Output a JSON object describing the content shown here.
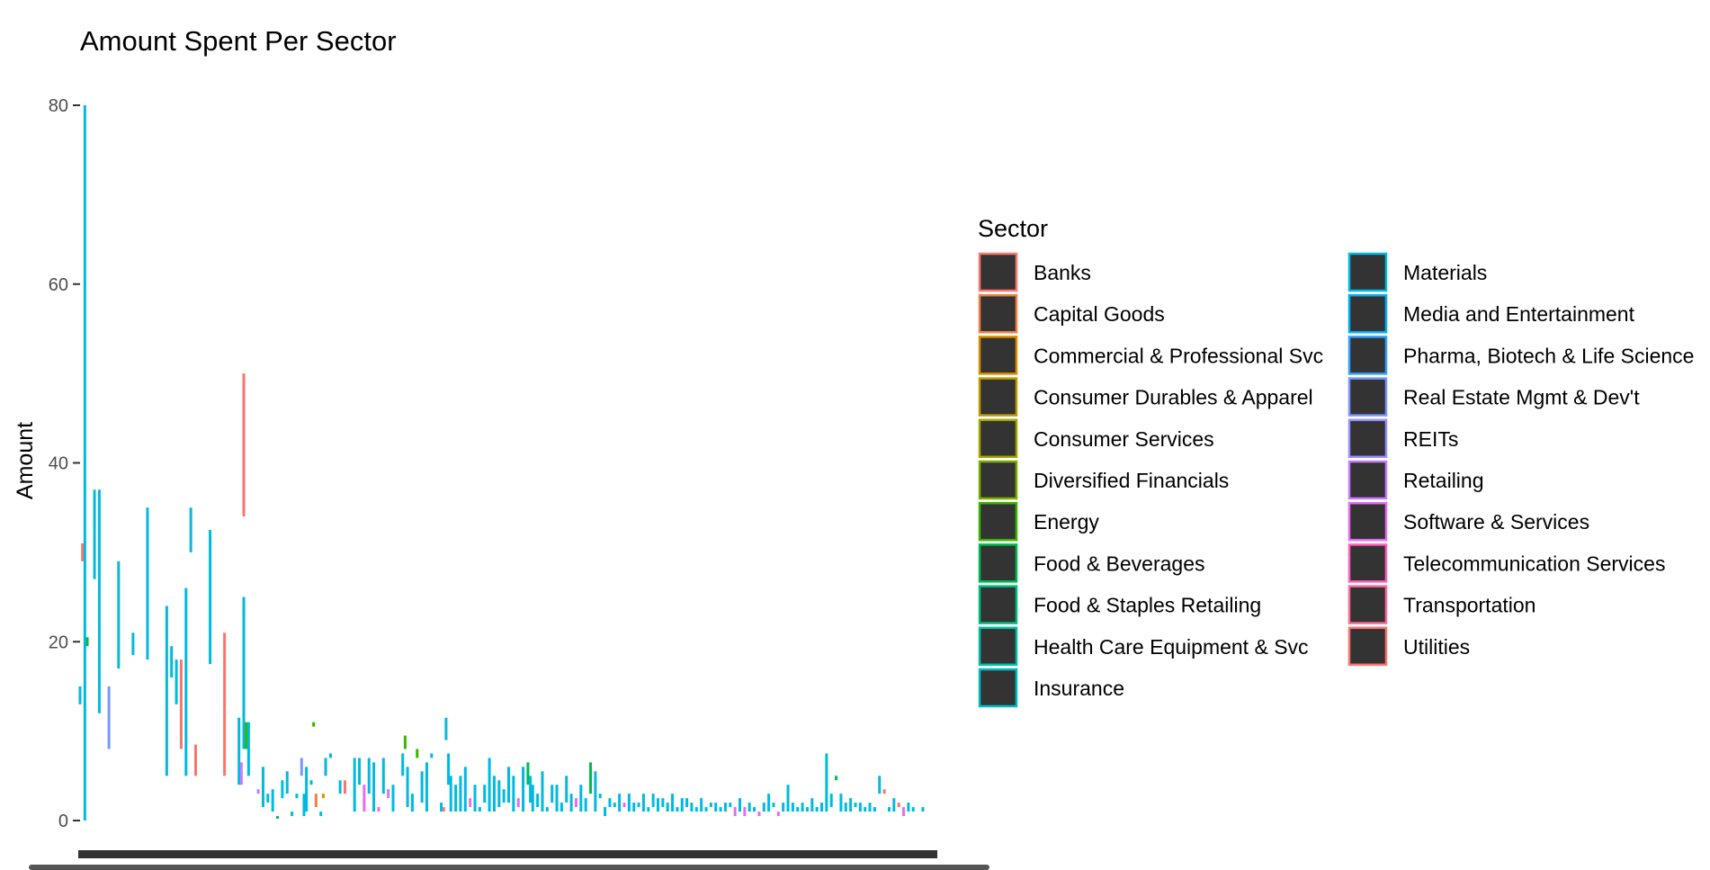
{
  "chart_data": {
    "type": "bar",
    "title": "Amount Spent Per Sector",
    "xlabel": "",
    "ylabel": "Amount",
    "ylim": [
      0,
      80
    ],
    "yticks": [
      0,
      20,
      40,
      60,
      80
    ],
    "grid": false,
    "legend": {
      "title": "Sector",
      "placement": "right",
      "columns": 2,
      "entries": [
        {
          "name": "Banks",
          "color": "#F8766D"
        },
        {
          "name": "Capital Goods",
          "color": "#EE8044"
        },
        {
          "name": "Commercial & Professional Svc",
          "color": "#DB8E00"
        },
        {
          "name": "Consumer Durables & Apparel",
          "color": "#C09B00"
        },
        {
          "name": "Consumer Services",
          "color": "#A3A500"
        },
        {
          "name": "Diversified Financials",
          "color": "#7CAE00"
        },
        {
          "name": "Energy",
          "color": "#39B600"
        },
        {
          "name": "Food & Beverages",
          "color": "#00BB4E"
        },
        {
          "name": "Food & Staples Retailing",
          "color": "#00BF7D"
        },
        {
          "name": "Health Care Equipment & Svc",
          "color": "#00C1A3"
        },
        {
          "name": "Insurance",
          "color": "#00BFC4"
        },
        {
          "name": "Materials",
          "color": "#00BAE0"
        },
        {
          "name": "Media and Entertainment",
          "color": "#00B0F6"
        },
        {
          "name": "Pharma, Biotech & Life Science",
          "color": "#35A2FF"
        },
        {
          "name": "Real Estate Mgmt & Dev't",
          "color": "#7997FF"
        },
        {
          "name": "REITs",
          "color": "#9590FF"
        },
        {
          "name": "Retailing",
          "color": "#C77CFF"
        },
        {
          "name": "Software & Services",
          "color": "#E76BF3"
        },
        {
          "name": "Telecommunication Services",
          "color": "#FF62BC"
        },
        {
          "name": "Transportation",
          "color": "#FF6A98"
        },
        {
          "name": "Utilities",
          "color": "#F8766D"
        }
      ]
    },
    "bars": [
      {
        "x": 0,
        "low": 13,
        "high": 15,
        "sector": 11
      },
      {
        "x": 0.5,
        "low": 29,
        "high": 31,
        "sector": 0
      },
      {
        "x": 1,
        "low": 0,
        "high": 80,
        "sector": 11
      },
      {
        "x": 1.5,
        "low": 19.5,
        "high": 20.5,
        "sector": 7
      },
      {
        "x": 3,
        "low": 27,
        "high": 37,
        "sector": 11
      },
      {
        "x": 4,
        "low": 12,
        "high": 37,
        "sector": 11
      },
      {
        "x": 6,
        "low": 8,
        "high": 15,
        "sector": 14
      },
      {
        "x": 8,
        "low": 17,
        "high": 29,
        "sector": 11
      },
      {
        "x": 11,
        "low": 18.5,
        "high": 21,
        "sector": 11
      },
      {
        "x": 14,
        "low": 18,
        "high": 35,
        "sector": 11
      },
      {
        "x": 18,
        "low": 5,
        "high": 24,
        "sector": 11
      },
      {
        "x": 19,
        "low": 16,
        "high": 19.5,
        "sector": 11
      },
      {
        "x": 20,
        "low": 13,
        "high": 18,
        "sector": 11
      },
      {
        "x": 21,
        "low": 8,
        "high": 18,
        "sector": 0
      },
      {
        "x": 22,
        "low": 5,
        "high": 26,
        "sector": 11
      },
      {
        "x": 23,
        "low": 30,
        "high": 35,
        "sector": 11
      },
      {
        "x": 24,
        "low": 5,
        "high": 8.5,
        "sector": 0
      },
      {
        "x": 27,
        "low": 17.5,
        "high": 32.5,
        "sector": 11
      },
      {
        "x": 30,
        "low": 5,
        "high": 21,
        "sector": 0
      },
      {
        "x": 33,
        "low": 4,
        "high": 11.5,
        "sector": 11
      },
      {
        "x": 33.5,
        "low": 4,
        "high": 6.5,
        "sector": 16
      },
      {
        "x": 34,
        "low": 34,
        "high": 50,
        "sector": 0
      },
      {
        "x": 34,
        "low": 8,
        "high": 25,
        "sector": 11
      },
      {
        "x": 34.5,
        "low": 8,
        "high": 11,
        "sector": 6
      },
      {
        "x": 35,
        "low": 5,
        "high": 11,
        "sector": 11
      },
      {
        "x": 37,
        "low": 3,
        "high": 3.5,
        "sector": 16
      },
      {
        "x": 38,
        "low": 1.5,
        "high": 6,
        "sector": 11
      },
      {
        "x": 39,
        "low": 2,
        "high": 3,
        "sector": 11
      },
      {
        "x": 40,
        "low": 1,
        "high": 3.5,
        "sector": 11
      },
      {
        "x": 41,
        "low": 0.2,
        "high": 0.5,
        "sector": 7
      },
      {
        "x": 42,
        "low": 2.5,
        "high": 4.5,
        "sector": 11
      },
      {
        "x": 43,
        "low": 3,
        "high": 5.5,
        "sector": 11
      },
      {
        "x": 44,
        "low": 0.5,
        "high": 1,
        "sector": 11
      },
      {
        "x": 45,
        "low": 2.5,
        "high": 3,
        "sector": 11
      },
      {
        "x": 46,
        "low": 5,
        "high": 7,
        "sector": 14
      },
      {
        "x": 46.5,
        "low": 0.5,
        "high": 3,
        "sector": 11
      },
      {
        "x": 47,
        "low": 1,
        "high": 6,
        "sector": 11
      },
      {
        "x": 48,
        "low": 4,
        "high": 4.5,
        "sector": 11
      },
      {
        "x": 48.5,
        "low": 10.5,
        "high": 11,
        "sector": 6
      },
      {
        "x": 49,
        "low": 1.5,
        "high": 3,
        "sector": 1
      },
      {
        "x": 50,
        "low": 0.5,
        "high": 1,
        "sector": 11
      },
      {
        "x": 50.5,
        "low": 2.5,
        "high": 3,
        "sector": 2
      },
      {
        "x": 51,
        "low": 5,
        "high": 7,
        "sector": 11
      },
      {
        "x": 52,
        "low": 7,
        "high": 7.5,
        "sector": 11
      },
      {
        "x": 54,
        "low": 3,
        "high": 4.5,
        "sector": 11
      },
      {
        "x": 55,
        "low": 3,
        "high": 4.5,
        "sector": 0
      },
      {
        "x": 57,
        "low": 1,
        "high": 7,
        "sector": 11
      },
      {
        "x": 58,
        "low": 4,
        "high": 7,
        "sector": 11
      },
      {
        "x": 59,
        "low": 1,
        "high": 4,
        "sector": 17
      },
      {
        "x": 60,
        "low": 3,
        "high": 7,
        "sector": 11
      },
      {
        "x": 61,
        "low": 1,
        "high": 6.5,
        "sector": 11
      },
      {
        "x": 62,
        "low": 1,
        "high": 1.5,
        "sector": 17
      },
      {
        "x": 63,
        "low": 3,
        "high": 7,
        "sector": 11
      },
      {
        "x": 64,
        "low": 2.5,
        "high": 3.5,
        "sector": 16
      },
      {
        "x": 65,
        "low": 1,
        "high": 4,
        "sector": 11
      },
      {
        "x": 67,
        "low": 5,
        "high": 7.5,
        "sector": 11
      },
      {
        "x": 67.5,
        "low": 8,
        "high": 9.5,
        "sector": 6
      },
      {
        "x": 68,
        "low": 1.5,
        "high": 6,
        "sector": 11
      },
      {
        "x": 69,
        "low": 1,
        "high": 3,
        "sector": 11
      },
      {
        "x": 70,
        "low": 7,
        "high": 8,
        "sector": 6
      },
      {
        "x": 71,
        "low": 2,
        "high": 5.5,
        "sector": 11
      },
      {
        "x": 72,
        "low": 1,
        "high": 6.5,
        "sector": 11
      },
      {
        "x": 73,
        "low": 7,
        "high": 7.5,
        "sector": 11
      },
      {
        "x": 75,
        "low": 1,
        "high": 2,
        "sector": 11
      },
      {
        "x": 75.5,
        "low": 1,
        "high": 1.5,
        "sector": 0
      },
      {
        "x": 76,
        "low": 9,
        "high": 11.5,
        "sector": 11
      },
      {
        "x": 76.5,
        "low": 4,
        "high": 7.5,
        "sector": 11
      },
      {
        "x": 77,
        "low": 1,
        "high": 5,
        "sector": 11
      },
      {
        "x": 78,
        "low": 1,
        "high": 4,
        "sector": 11
      },
      {
        "x": 79,
        "low": 1,
        "high": 5,
        "sector": 11
      },
      {
        "x": 80,
        "low": 1,
        "high": 6,
        "sector": 11
      },
      {
        "x": 81,
        "low": 1.5,
        "high": 2.5,
        "sector": 17
      },
      {
        "x": 82,
        "low": 1,
        "high": 4,
        "sector": 11
      },
      {
        "x": 83,
        "low": 1,
        "high": 1.5,
        "sector": 11
      },
      {
        "x": 84,
        "low": 2,
        "high": 4,
        "sector": 11
      },
      {
        "x": 85,
        "low": 1,
        "high": 7,
        "sector": 11
      },
      {
        "x": 86,
        "low": 1,
        "high": 5,
        "sector": 11
      },
      {
        "x": 87,
        "low": 1.5,
        "high": 4.5,
        "sector": 11
      },
      {
        "x": 88,
        "low": 2,
        "high": 3.5,
        "sector": 11
      },
      {
        "x": 89,
        "low": 2,
        "high": 6,
        "sector": 11
      },
      {
        "x": 90,
        "low": 1,
        "high": 5,
        "sector": 11
      },
      {
        "x": 91,
        "low": 1.5,
        "high": 2.5,
        "sector": 17
      },
      {
        "x": 92,
        "low": 1,
        "high": 6,
        "sector": 11
      },
      {
        "x": 93,
        "low": 4,
        "high": 6.5,
        "sector": 7
      },
      {
        "x": 93.5,
        "low": 2,
        "high": 5,
        "sector": 11
      },
      {
        "x": 94,
        "low": 1,
        "high": 4,
        "sector": 11
      },
      {
        "x": 95,
        "low": 1.5,
        "high": 3,
        "sector": 11
      },
      {
        "x": 96,
        "low": 1,
        "high": 5.5,
        "sector": 11
      },
      {
        "x": 97,
        "low": 1,
        "high": 1.5,
        "sector": 11
      },
      {
        "x": 98,
        "low": 2,
        "high": 4,
        "sector": 11
      },
      {
        "x": 99,
        "low": 1,
        "high": 4,
        "sector": 11
      },
      {
        "x": 100,
        "low": 1,
        "high": 2,
        "sector": 11
      },
      {
        "x": 101,
        "low": 2,
        "high": 5,
        "sector": 11
      },
      {
        "x": 102,
        "low": 1,
        "high": 3,
        "sector": 11
      },
      {
        "x": 103,
        "low": 1.5,
        "high": 2.5,
        "sector": 17
      },
      {
        "x": 104,
        "low": 1,
        "high": 4,
        "sector": 11
      },
      {
        "x": 105,
        "low": 1,
        "high": 2.5,
        "sector": 11
      },
      {
        "x": 106,
        "low": 3,
        "high": 6.5,
        "sector": 7
      },
      {
        "x": 107,
        "low": 1,
        "high": 5.5,
        "sector": 11
      },
      {
        "x": 108,
        "low": 2.5,
        "high": 3,
        "sector": 11
      },
      {
        "x": 109,
        "low": 0.5,
        "high": 1.5,
        "sector": 11
      },
      {
        "x": 110,
        "low": 1.5,
        "high": 2.5,
        "sector": 11
      },
      {
        "x": 111,
        "low": 1.5,
        "high": 2,
        "sector": 11
      },
      {
        "x": 112,
        "low": 1,
        "high": 3,
        "sector": 11
      },
      {
        "x": 113,
        "low": 1.5,
        "high": 2,
        "sector": 17
      },
      {
        "x": 114,
        "low": 1,
        "high": 3,
        "sector": 11
      },
      {
        "x": 115,
        "low": 1,
        "high": 2,
        "sector": 11
      },
      {
        "x": 116,
        "low": 1.5,
        "high": 2,
        "sector": 11
      },
      {
        "x": 117,
        "low": 1,
        "high": 3,
        "sector": 11
      },
      {
        "x": 118,
        "low": 1,
        "high": 1.5,
        "sector": 11
      },
      {
        "x": 119,
        "low": 1.5,
        "high": 3,
        "sector": 11
      },
      {
        "x": 120,
        "low": 1,
        "high": 2.5,
        "sector": 11
      },
      {
        "x": 121,
        "low": 1.5,
        "high": 2.5,
        "sector": 11
      },
      {
        "x": 122,
        "low": 1,
        "high": 2,
        "sector": 11
      },
      {
        "x": 123,
        "low": 1,
        "high": 3,
        "sector": 11
      },
      {
        "x": 124,
        "low": 1,
        "high": 1.5,
        "sector": 11
      },
      {
        "x": 125,
        "low": 1,
        "high": 2.5,
        "sector": 11
      },
      {
        "x": 126,
        "low": 1.5,
        "high": 2.5,
        "sector": 11
      },
      {
        "x": 127,
        "low": 1,
        "high": 2,
        "sector": 11
      },
      {
        "x": 128,
        "low": 1,
        "high": 1.5,
        "sector": 11
      },
      {
        "x": 129,
        "low": 1,
        "high": 2.5,
        "sector": 11
      },
      {
        "x": 130,
        "low": 1,
        "high": 1.5,
        "sector": 11
      },
      {
        "x": 131,
        "low": 1.5,
        "high": 2,
        "sector": 11
      },
      {
        "x": 132,
        "low": 1,
        "high": 2,
        "sector": 11
      },
      {
        "x": 133,
        "low": 1,
        "high": 1.5,
        "sector": 11
      },
      {
        "x": 134,
        "low": 1,
        "high": 2,
        "sector": 11
      },
      {
        "x": 135,
        "low": 1.5,
        "high": 2,
        "sector": 11
      },
      {
        "x": 136,
        "low": 0.5,
        "high": 1.5,
        "sector": 17
      },
      {
        "x": 137,
        "low": 1,
        "high": 2.5,
        "sector": 11
      },
      {
        "x": 138,
        "low": 0.5,
        "high": 1.5,
        "sector": 17
      },
      {
        "x": 139,
        "low": 1,
        "high": 2,
        "sector": 11
      },
      {
        "x": 140,
        "low": 1,
        "high": 1.5,
        "sector": 11
      },
      {
        "x": 141,
        "low": 0.5,
        "high": 1,
        "sector": 17
      },
      {
        "x": 142,
        "low": 1,
        "high": 2,
        "sector": 11
      },
      {
        "x": 143,
        "low": 1,
        "high": 3,
        "sector": 11
      },
      {
        "x": 144,
        "low": 1.5,
        "high": 2,
        "sector": 11
      },
      {
        "x": 145,
        "low": 0.5,
        "high": 1,
        "sector": 17
      },
      {
        "x": 146,
        "low": 1,
        "high": 2,
        "sector": 11
      },
      {
        "x": 147,
        "low": 1,
        "high": 4,
        "sector": 11
      },
      {
        "x": 148,
        "low": 1,
        "high": 2,
        "sector": 11
      },
      {
        "x": 149,
        "low": 1,
        "high": 1.5,
        "sector": 11
      },
      {
        "x": 150,
        "low": 1,
        "high": 2,
        "sector": 11
      },
      {
        "x": 151,
        "low": 1,
        "high": 1.5,
        "sector": 11
      },
      {
        "x": 152,
        "low": 1,
        "high": 2.5,
        "sector": 11
      },
      {
        "x": 153,
        "low": 1,
        "high": 1.5,
        "sector": 11
      },
      {
        "x": 154,
        "low": 1,
        "high": 2,
        "sector": 11
      },
      {
        "x": 155,
        "low": 1,
        "high": 7.5,
        "sector": 11
      },
      {
        "x": 156,
        "low": 1.5,
        "high": 3,
        "sector": 11
      },
      {
        "x": 157,
        "low": 4.5,
        "high": 5,
        "sector": 7
      },
      {
        "x": 158,
        "low": 1,
        "high": 3,
        "sector": 11
      },
      {
        "x": 159,
        "low": 1,
        "high": 2,
        "sector": 11
      },
      {
        "x": 160,
        "low": 1,
        "high": 2.5,
        "sector": 11
      },
      {
        "x": 161,
        "low": 1.5,
        "high": 2,
        "sector": 11
      },
      {
        "x": 162,
        "low": 1,
        "high": 2,
        "sector": 11
      },
      {
        "x": 163,
        "low": 1,
        "high": 1.5,
        "sector": 11
      },
      {
        "x": 164,
        "low": 1,
        "high": 2,
        "sector": 11
      },
      {
        "x": 165,
        "low": 1,
        "high": 1.5,
        "sector": 11
      },
      {
        "x": 166,
        "low": 3,
        "high": 5,
        "sector": 11
      },
      {
        "x": 167,
        "low": 3,
        "high": 3.5,
        "sector": 0
      },
      {
        "x": 168,
        "low": 1,
        "high": 1.5,
        "sector": 11
      },
      {
        "x": 169,
        "low": 1,
        "high": 2.5,
        "sector": 11
      },
      {
        "x": 170,
        "low": 1.5,
        "high": 2,
        "sector": 0
      },
      {
        "x": 171,
        "low": 0.5,
        "high": 1.5,
        "sector": 17
      },
      {
        "x": 172,
        "low": 1,
        "high": 2,
        "sector": 11
      },
      {
        "x": 173,
        "low": 1,
        "high": 1.5,
        "sector": 11
      },
      {
        "x": 175,
        "low": 1,
        "high": 1.5,
        "sector": 11
      }
    ]
  }
}
